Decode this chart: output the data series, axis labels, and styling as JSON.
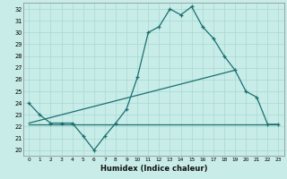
{
  "xlabel": "Humidex (Indice chaleur)",
  "xlim": [
    -0.5,
    23.5
  ],
  "ylim": [
    19.5,
    32.5
  ],
  "xticks": [
    0,
    1,
    2,
    3,
    4,
    5,
    6,
    7,
    8,
    9,
    10,
    11,
    12,
    13,
    14,
    15,
    16,
    17,
    18,
    19,
    20,
    21,
    22,
    23
  ],
  "yticks": [
    20,
    21,
    22,
    23,
    24,
    25,
    26,
    27,
    28,
    29,
    30,
    31,
    32
  ],
  "bg_color": "#c8ece8",
  "line_color": "#1a7070",
  "grid_color": "#a8d8d4",
  "line1_x": [
    0,
    1,
    2,
    3,
    4,
    5,
    6,
    7,
    8,
    9,
    10,
    11,
    12,
    13,
    14,
    15,
    16,
    17,
    18,
    19,
    20,
    21,
    22,
    23
  ],
  "line1_y": [
    24.0,
    23.0,
    22.3,
    22.3,
    22.3,
    21.2,
    20.0,
    21.2,
    22.3,
    23.5,
    26.2,
    30.0,
    30.5,
    32.0,
    31.5,
    32.2,
    30.5,
    29.5,
    28.0,
    26.8,
    25.0,
    24.5,
    22.2,
    22.2
  ],
  "line2_x": [
    0,
    19
  ],
  "line2_y": [
    22.3,
    26.8
  ],
  "line3_x": [
    0,
    23
  ],
  "line3_y": [
    22.2,
    22.2
  ]
}
